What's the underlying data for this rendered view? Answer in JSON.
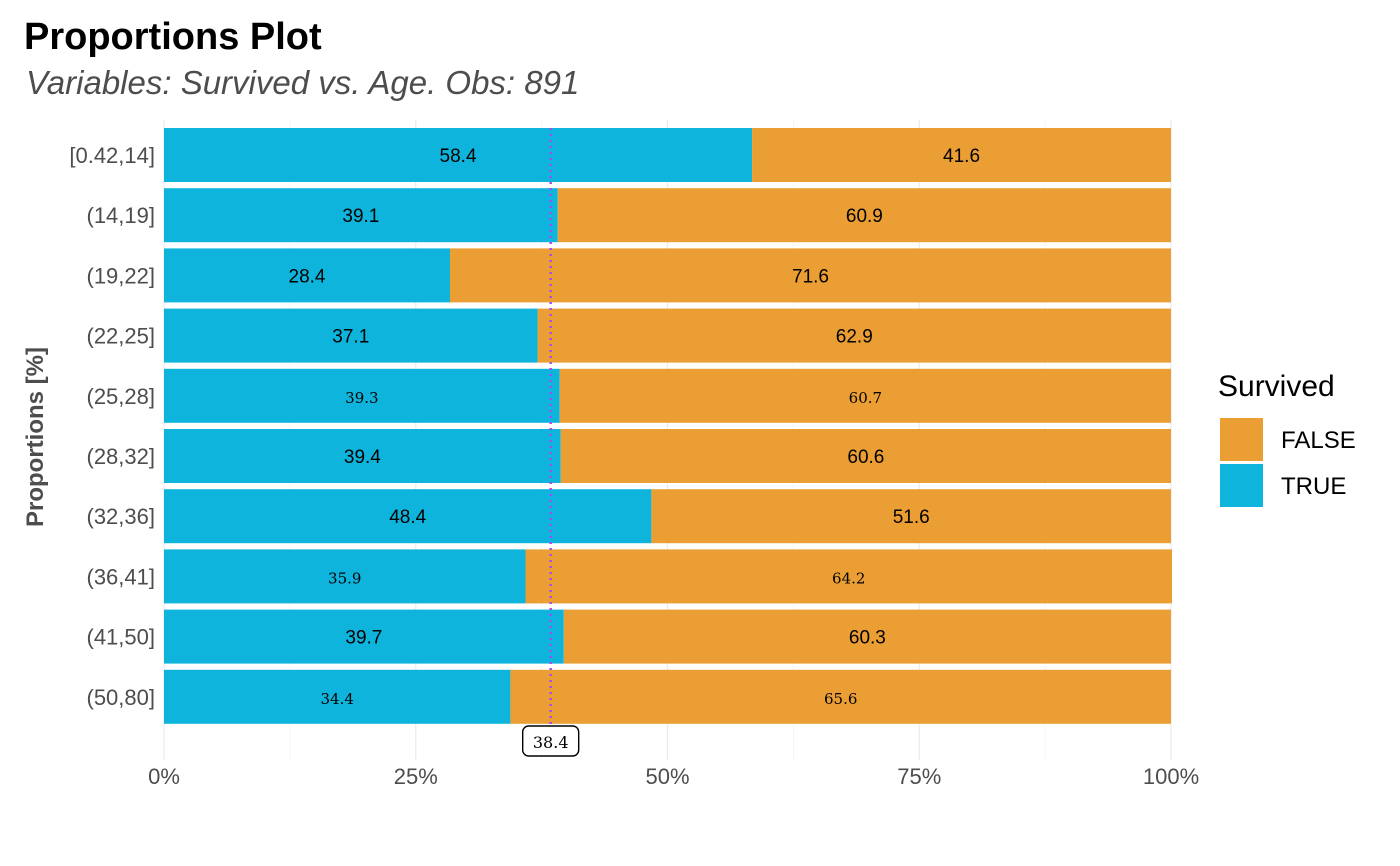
{
  "chart_data": {
    "type": "bar",
    "orientation": "horizontal",
    "stacked": true,
    "title": "Proportions Plot",
    "subtitle": "Variables: Survived vs. Age. Obs: 891",
    "ylabel": "Proportions [%]",
    "xlabel": "",
    "xlim": [
      0,
      100
    ],
    "xticks": [
      "0%",
      "25%",
      "50%",
      "75%",
      "100%"
    ],
    "xtick_values": [
      0,
      25,
      50,
      75,
      100
    ],
    "categories": [
      "[0.42,14]",
      "(14,19]",
      "(19,22]",
      "(22,25]",
      "(25,28]",
      "(28,32]",
      "(32,36]",
      "(36,41]",
      "(41,50]",
      "(50,80]"
    ],
    "series": [
      {
        "name": "TRUE",
        "color": "#0eb4dc",
        "values": [
          58.4,
          39.1,
          28.4,
          37.1,
          39.3,
          39.4,
          48.4,
          35.9,
          39.7,
          34.4
        ],
        "labels": [
          "58.4",
          "39.1",
          "28.4",
          "37.1",
          "39.3",
          "39.4",
          "48.4",
          "35.9",
          "39.7",
          "34.4"
        ]
      },
      {
        "name": "FALSE",
        "color": "#eb9e33",
        "values": [
          41.6,
          60.9,
          71.6,
          62.9,
          60.7,
          60.6,
          51.6,
          64.2,
          60.3,
          65.6
        ],
        "labels": [
          "41.6",
          "60.9",
          "71.6",
          "62.9",
          "60.7",
          "60.6",
          "51.6",
          "64.2",
          "60.3",
          "65.6"
        ]
      }
    ],
    "small_label_rows": [
      4,
      7,
      9
    ],
    "reference_line": {
      "value": 38.4,
      "label": "38.4",
      "color": "#a64bf4",
      "style": "dotted"
    },
    "legend": {
      "title": "Survived",
      "position": "right",
      "entries": [
        {
          "label": "FALSE",
          "color": "#eb9e33"
        },
        {
          "label": "TRUE",
          "color": "#0eb4dc"
        }
      ]
    },
    "grid": true
  }
}
